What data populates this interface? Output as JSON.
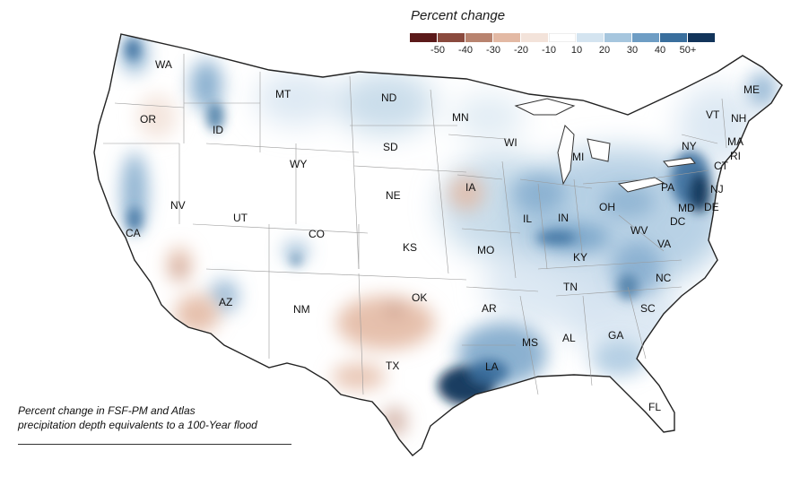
{
  "legend": {
    "title": "Percent change",
    "ticks": [
      "-50",
      "-40",
      "-30",
      "-20",
      "-10",
      "10",
      "20",
      "30",
      "40",
      "50+"
    ],
    "colors": [
      "#5b1a1a",
      "#8a4a3e",
      "#b8836f",
      "#e3b9a4",
      "#f3e3da",
      "#ffffff",
      "#d4e4f0",
      "#a6c6de",
      "#6e9dc4",
      "#3a6f9d",
      "#12345a"
    ]
  },
  "caption": {
    "line1": "Percent change in FSF-PM and Atlas",
    "line2": "precipitation depth equivalents to a 100-Year flood"
  },
  "states": {
    "WA": "WA",
    "OR": "OR",
    "CA": "CA",
    "ID": "ID",
    "NV": "NV",
    "MT": "MT",
    "WY": "WY",
    "UT": "UT",
    "AZ": "AZ",
    "CO": "CO",
    "NM": "NM",
    "ND": "ND",
    "SD": "SD",
    "NE": "NE",
    "KS": "KS",
    "OK": "OK",
    "TX": "TX",
    "MN": "MN",
    "IA": "IA",
    "MO": "MO",
    "AR": "AR",
    "LA": "LA",
    "WI": "WI",
    "IL": "IL",
    "MI": "MI",
    "IN": "IN",
    "OH": "OH",
    "KY": "KY",
    "TN": "TN",
    "MS": "MS",
    "AL": "AL",
    "GA": "GA",
    "FL": "FL",
    "SC": "SC",
    "NC": "NC",
    "VA": "VA",
    "WV": "WV",
    "PA": "PA",
    "NY": "NY",
    "VT": "VT",
    "NH": "NH",
    "ME": "ME",
    "MA": "MA",
    "RI": "RI",
    "CT": "CT",
    "NJ": "NJ",
    "DE": "DE",
    "MD": "MD",
    "DC": "DC"
  }
}
